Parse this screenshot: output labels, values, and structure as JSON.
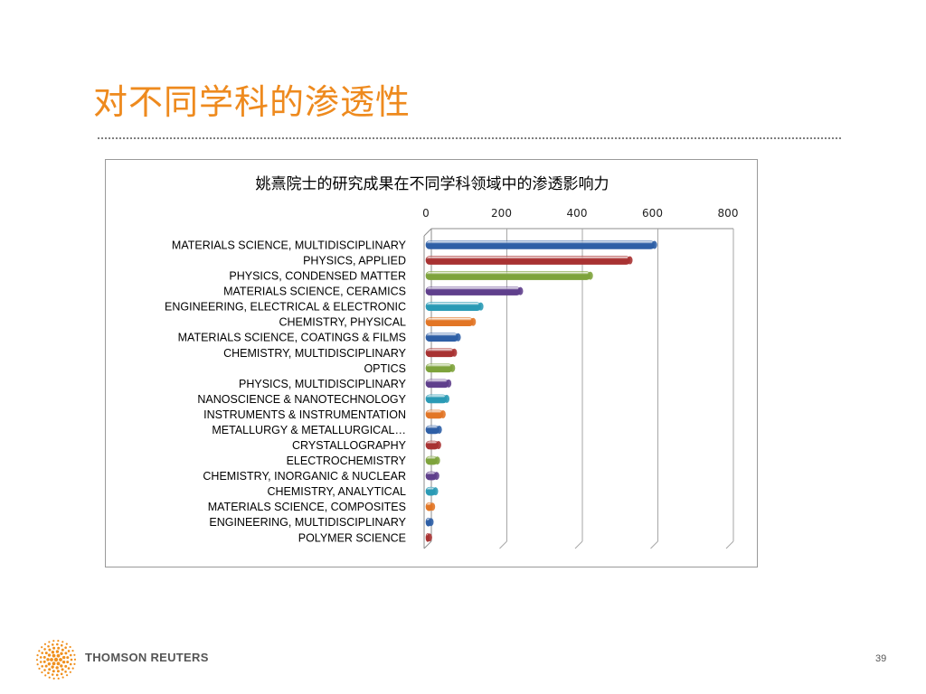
{
  "slide": {
    "title": "对不同学科的渗透性",
    "brand": "THOMSON REUTERS",
    "page_number": "39"
  },
  "chart_data": {
    "type": "bar",
    "orientation": "horizontal",
    "title": "姚熹院士的研究成果在不同学科领域中的渗透影响力",
    "xlabel": "",
    "ylabel": "",
    "xlim": [
      0,
      800
    ],
    "x_ticks": [
      "0",
      "200",
      "400",
      "600",
      "800"
    ],
    "axis_position": "top",
    "grid": true,
    "legend": "none",
    "categories": [
      "MATERIALS SCIENCE, MULTIDISCIPLINARY",
      "PHYSICS, APPLIED",
      "PHYSICS, CONDENSED MATTER",
      "MATERIALS SCIENCE, CERAMICS",
      "ENGINEERING, ELECTRICAL & ELECTRONIC",
      "CHEMISTRY, PHYSICAL",
      "MATERIALS SCIENCE, COATINGS & FILMS",
      "CHEMISTRY, MULTIDISCIPLINARY",
      "OPTICS",
      "PHYSICS, MULTIDISCIPLINARY",
      "NANOSCIENCE & NANOTECHNOLOGY",
      "INSTRUMENTS & INSTRUMENTATION",
      "METALLURGY & METALLURGICAL…",
      "CRYSTALLOGRAPHY",
      "ELECTROCHEMISTRY",
      "CHEMISTRY, INORGANIC & NUCLEAR",
      "CHEMISTRY, ANALYTICAL",
      "MATERIALS SCIENCE, COMPOSITES",
      "ENGINEERING, MULTIDISCIPLINARY",
      "POLYMER SCIENCE"
    ],
    "values": [
      610,
      545,
      440,
      255,
      150,
      130,
      90,
      80,
      75,
      65,
      60,
      50,
      40,
      38,
      35,
      33,
      30,
      22,
      18,
      14
    ],
    "colors": [
      "#2e5fa6",
      "#a83232",
      "#7ea33c",
      "#5f3f8c",
      "#2a9ab5",
      "#e27626"
    ]
  }
}
